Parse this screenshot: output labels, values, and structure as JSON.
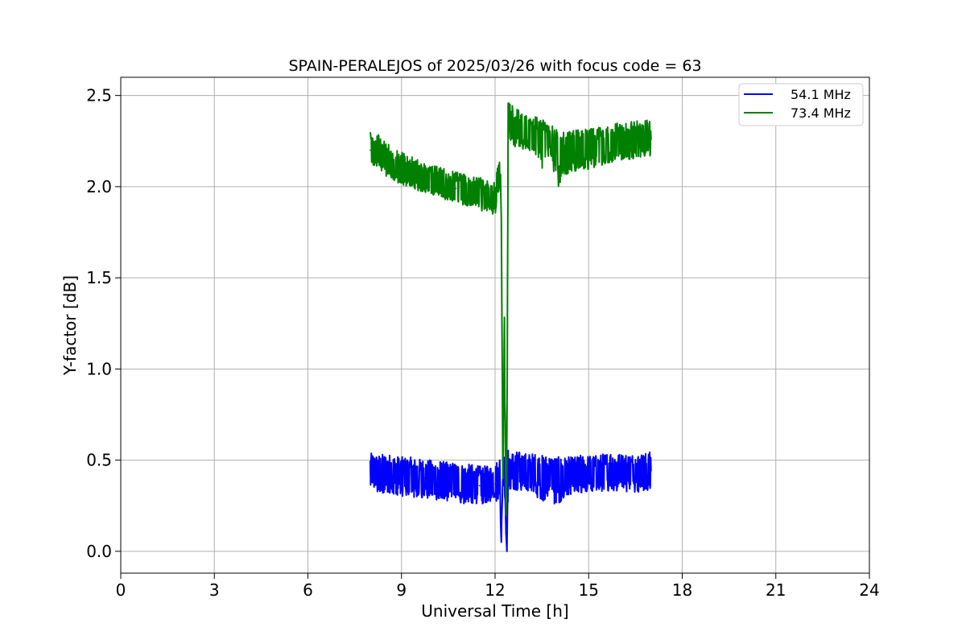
{
  "chart_data": {
    "type": "line",
    "title": "SPAIN-PERALEJOS of 2025/03/26 with focus code = 63",
    "xlabel": "Universal Time [h]",
    "ylabel": "Y-factor [dB]",
    "xlim": [
      0,
      24
    ],
    "ylim": [
      -0.12,
      2.6
    ],
    "xticks": [
      0,
      3,
      6,
      9,
      12,
      15,
      18,
      21,
      24
    ],
    "xtick_labels": [
      "0",
      "3",
      "6",
      "9",
      "12",
      "15",
      "18",
      "21",
      "24"
    ],
    "yticks": [
      0.0,
      0.5,
      1.0,
      1.5,
      2.0,
      2.5
    ],
    "ytick_labels": [
      "0.0",
      "0.5",
      "1.0",
      "1.5",
      "2.0",
      "2.5"
    ],
    "grid": true,
    "legend_position": "top-right",
    "series": [
      {
        "name": "54.1 MHz",
        "color": "#0000ff",
        "x": [
          8.0,
          8.25,
          8.5,
          8.75,
          9.0,
          9.25,
          9.5,
          9.75,
          10.0,
          10.25,
          10.5,
          10.75,
          11.0,
          11.25,
          11.5,
          11.75,
          12.0,
          12.15,
          12.2,
          12.25,
          12.3,
          12.35,
          12.38,
          12.42,
          12.5,
          12.75,
          13.0,
          13.25,
          13.5,
          13.75,
          14.0,
          14.25,
          14.5,
          14.75,
          15.0,
          15.25,
          15.5,
          15.75,
          16.0,
          16.25,
          16.5,
          16.75,
          17.0
        ],
        "y": [
          0.44,
          0.43,
          0.42,
          0.42,
          0.41,
          0.41,
          0.4,
          0.4,
          0.39,
          0.39,
          0.38,
          0.38,
          0.37,
          0.37,
          0.36,
          0.36,
          0.37,
          0.38,
          0.05,
          0.55,
          0.42,
          0.1,
          0.0,
          0.45,
          0.44,
          0.44,
          0.43,
          0.43,
          0.42,
          0.42,
          0.41,
          0.41,
          0.41,
          0.42,
          0.42,
          0.42,
          0.43,
          0.43,
          0.43,
          0.43,
          0.43,
          0.43,
          0.44
        ],
        "min_y": [
          0.33,
          0.31,
          0.3,
          0.3,
          0.29,
          0.29,
          0.28,
          0.28,
          0.27,
          0.27,
          0.26,
          0.26,
          0.25,
          0.25,
          0.25,
          0.25,
          0.26,
          0.27,
          0.05,
          0.35,
          0.3,
          0.1,
          0.0,
          0.33,
          0.33,
          0.32,
          0.32,
          0.31,
          0.23,
          0.31,
          0.17,
          0.3,
          0.3,
          0.31,
          0.31,
          0.31,
          0.32,
          0.32,
          0.32,
          0.31,
          0.31,
          0.32,
          0.32
        ],
        "max_y": [
          0.55,
          0.54,
          0.55,
          0.54,
          0.53,
          0.53,
          0.52,
          0.52,
          0.51,
          0.51,
          0.5,
          0.5,
          0.49,
          0.49,
          0.48,
          0.48,
          0.49,
          0.55,
          0.05,
          0.63,
          0.54,
          0.1,
          0.0,
          0.57,
          0.56,
          0.56,
          0.55,
          0.55,
          0.54,
          0.54,
          0.53,
          0.53,
          0.53,
          0.54,
          0.54,
          0.54,
          0.55,
          0.57,
          0.55,
          0.55,
          0.55,
          0.55,
          0.56
        ]
      },
      {
        "name": "73.4 MHz",
        "color": "#008000",
        "x": [
          8.0,
          8.25,
          8.5,
          8.75,
          9.0,
          9.25,
          9.5,
          9.75,
          10.0,
          10.25,
          10.5,
          10.75,
          11.0,
          11.25,
          11.5,
          11.75,
          12.0,
          12.1,
          12.15,
          12.2,
          12.25,
          12.3,
          12.35,
          12.38,
          12.42,
          12.5,
          12.75,
          13.0,
          13.25,
          13.5,
          13.75,
          14.0,
          14.25,
          14.5,
          14.75,
          15.0,
          15.25,
          15.5,
          15.75,
          16.0,
          16.25,
          16.5,
          16.75,
          17.0
        ],
        "y": [
          2.2,
          2.17,
          2.14,
          2.11,
          2.1,
          2.08,
          2.06,
          2.05,
          2.03,
          2.02,
          2.0,
          1.99,
          1.98,
          1.97,
          1.95,
          1.94,
          1.93,
          2.0,
          2.12,
          1.9,
          0.4,
          1.1,
          0.2,
          0.55,
          2.35,
          2.34,
          2.31,
          2.3,
          2.28,
          2.27,
          2.25,
          2.2,
          2.18,
          2.19,
          2.2,
          2.21,
          2.21,
          2.22,
          2.23,
          2.24,
          2.24,
          2.25,
          2.25,
          2.26
        ],
        "min_y": [
          2.12,
          2.08,
          2.05,
          2.02,
          2.0,
          1.99,
          1.97,
          1.96,
          1.94,
          1.93,
          1.91,
          1.9,
          1.89,
          1.88,
          1.86,
          1.85,
          1.83,
          1.92,
          2.0,
          1.8,
          0.4,
          1.0,
          0.2,
          0.5,
          2.25,
          2.23,
          2.18,
          2.2,
          2.17,
          2.08,
          2.15,
          1.94,
          2.05,
          2.06,
          2.07,
          2.07,
          2.1,
          2.11,
          2.12,
          2.13,
          2.14,
          2.14,
          2.15,
          2.16
        ],
        "max_y": [
          2.32,
          2.3,
          2.26,
          2.22,
          2.2,
          2.18,
          2.16,
          2.14,
          2.13,
          2.12,
          2.1,
          2.09,
          2.08,
          2.07,
          2.06,
          2.05,
          2.03,
          2.15,
          2.2,
          2.0,
          0.4,
          1.38,
          0.2,
          0.7,
          2.48,
          2.46,
          2.44,
          2.42,
          2.4,
          2.38,
          2.36,
          2.33,
          2.31,
          2.32,
          2.33,
          2.34,
          2.34,
          2.35,
          2.4,
          2.36,
          2.37,
          2.37,
          2.38,
          2.38
        ]
      }
    ]
  }
}
